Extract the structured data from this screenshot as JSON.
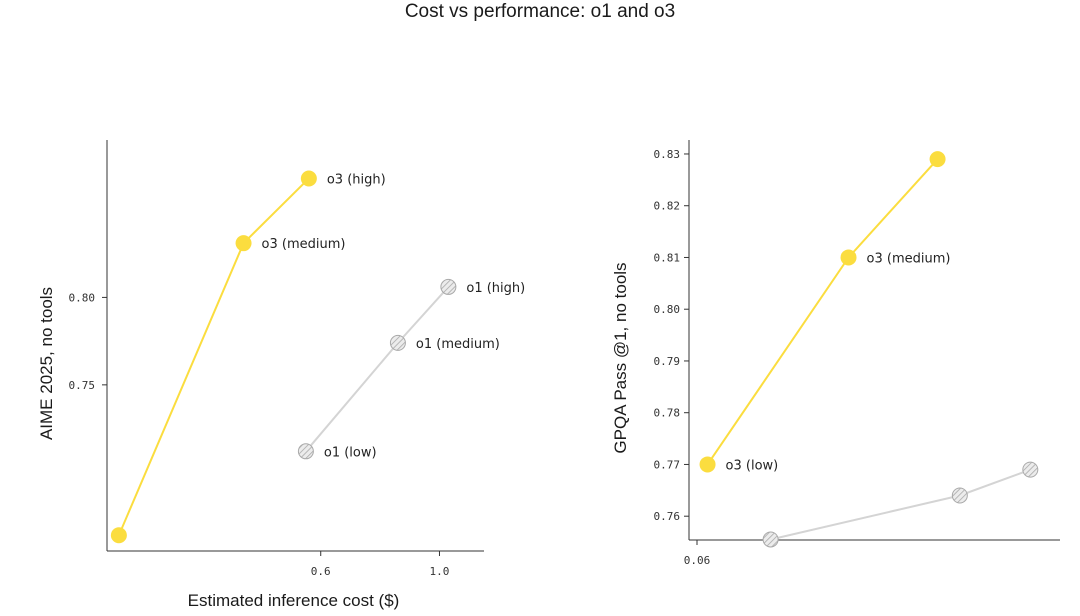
{
  "title": "Cost vs performance: o1 and o3",
  "colors": {
    "o3": "#FBDD3F",
    "o1": "#D4D4D4",
    "o1_hatch": "#A9A9A9",
    "axis": "#333333"
  },
  "chart_data": [
    {
      "type": "line",
      "title": "",
      "xlabel": "Estimated inference cost ($)",
      "ylabel": "AIME 2025, no tools",
      "x_ticks": [
        "0.6",
        "1.0"
      ],
      "y_ticks": [
        "0.75",
        "0.80"
      ],
      "xlim": [
        -0.12,
        1.15
      ],
      "ylim": [
        0.655,
        0.89
      ],
      "grid": false,
      "series": [
        {
          "name": "o3",
          "points": [
            {
              "x": -0.08,
              "y": 0.664,
              "label": ""
            },
            {
              "x": 0.34,
              "y": 0.831,
              "label": "o3 (medium)"
            },
            {
              "x": 0.56,
              "y": 0.868,
              "label": "o3 (high)"
            }
          ]
        },
        {
          "name": "o1",
          "points": [
            {
              "x": 0.55,
              "y": 0.712,
              "label": "o1 (low)"
            },
            {
              "x": 0.86,
              "y": 0.774,
              "label": "o1 (medium)"
            },
            {
              "x": 1.03,
              "y": 0.806,
              "label": "o1 (high)"
            }
          ]
        }
      ]
    },
    {
      "type": "line",
      "title": "",
      "xlabel": "",
      "ylabel": "GPQA Pass @1, no tools",
      "x_ticks": [
        "0.06"
      ],
      "y_ticks": [
        "0.76",
        "0.77",
        "0.78",
        "0.79",
        "0.80",
        "0.81",
        "0.82",
        "0.83"
      ],
      "xlim": [
        0.0,
        1.0
      ],
      "ylim": [
        0.7554,
        0.8327
      ],
      "grid": false,
      "series": [
        {
          "name": "o3",
          "points": [
            {
              "x": 0.05,
              "y": 0.77,
              "label": "o3 (low)"
            },
            {
              "x": 0.43,
              "y": 0.81,
              "label": "o3 (medium)"
            },
            {
              "x": 0.67,
              "y": 0.829,
              "label": ""
            }
          ]
        },
        {
          "name": "o1",
          "points": [
            {
              "x": 0.22,
              "y": 0.7555,
              "label": ""
            },
            {
              "x": 0.73,
              "y": 0.764,
              "label": ""
            },
            {
              "x": 0.92,
              "y": 0.769,
              "label": ""
            }
          ]
        }
      ]
    }
  ]
}
